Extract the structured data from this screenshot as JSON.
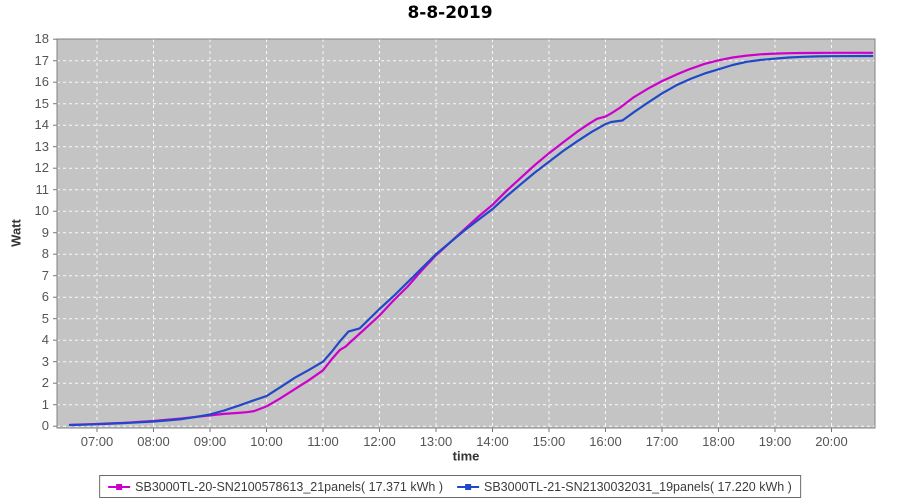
{
  "title": "8-8-2019",
  "axes": {
    "y_label": "Watt",
    "x_label": "time",
    "y_ticks": [
      "0",
      "1",
      "2",
      "3",
      "4",
      "5",
      "6",
      "7",
      "8",
      "9",
      "10",
      "11",
      "12",
      "13",
      "14",
      "15",
      "16",
      "17",
      "18"
    ],
    "x_ticks": [
      "07:00",
      "08:00",
      "09:00",
      "10:00",
      "11:00",
      "12:00",
      "13:00",
      "14:00",
      "15:00",
      "16:00",
      "17:00",
      "18:00",
      "19:00",
      "20:00"
    ]
  },
  "legend": [
    {
      "label": "SB3000TL-20-SN2100578613_21panels( 17.371 kWh )",
      "color": "#CC00CC"
    },
    {
      "label": "SB3000TL-21-SN2130032031_19panels( 17.220 kWh )",
      "color": "#2048C8"
    }
  ],
  "colors": {
    "plot_background": "#C4C4C4",
    "plot_border": "#808080",
    "gridline": "#FFFFFF",
    "tick_text": "#555555",
    "series_magenta": "#CC00CC",
    "series_blue": "#2048C8"
  },
  "chart_data": {
    "type": "line",
    "title": "8-8-2019",
    "xlabel": "time",
    "ylabel": "Watt",
    "x_unit": "hour_of_day",
    "xlim": [
      6.29,
      20.78
    ],
    "ylim": [
      0,
      18
    ],
    "grid": true,
    "grid_style": "white-dashed",
    "legend_position": "bottom",
    "x_tick_hours": [
      7,
      8,
      9,
      10,
      11,
      12,
      13,
      14,
      15,
      16,
      17,
      18,
      19,
      20
    ],
    "series": [
      {
        "name": "SB3000TL-20-SN2100578613_21panels( 17.371 kWh )",
        "color": "#CC00CC",
        "final_kwh": 17.371,
        "points": [
          [
            6.52,
            0.06
          ],
          [
            6.75,
            0.08
          ],
          [
            7.0,
            0.1
          ],
          [
            7.25,
            0.13
          ],
          [
            7.5,
            0.16
          ],
          [
            7.75,
            0.2
          ],
          [
            8.0,
            0.24
          ],
          [
            8.25,
            0.3
          ],
          [
            8.5,
            0.36
          ],
          [
            8.75,
            0.43
          ],
          [
            9.0,
            0.5
          ],
          [
            9.25,
            0.57
          ],
          [
            9.5,
            0.62
          ],
          [
            9.65,
            0.65
          ],
          [
            9.78,
            0.7
          ],
          [
            10.0,
            0.92
          ],
          [
            10.25,
            1.3
          ],
          [
            10.5,
            1.72
          ],
          [
            10.75,
            2.14
          ],
          [
            11.0,
            2.6
          ],
          [
            11.15,
            3.1
          ],
          [
            11.3,
            3.55
          ],
          [
            11.4,
            3.7
          ],
          [
            11.5,
            3.95
          ],
          [
            11.75,
            4.55
          ],
          [
            12.0,
            5.15
          ],
          [
            12.25,
            5.85
          ],
          [
            12.5,
            6.5
          ],
          [
            12.75,
            7.25
          ],
          [
            13.0,
            7.95
          ],
          [
            13.25,
            8.55
          ],
          [
            13.5,
            9.15
          ],
          [
            13.75,
            9.75
          ],
          [
            14.0,
            10.3
          ],
          [
            14.25,
            10.95
          ],
          [
            14.5,
            11.55
          ],
          [
            14.75,
            12.15
          ],
          [
            15.0,
            12.7
          ],
          [
            15.25,
            13.2
          ],
          [
            15.5,
            13.7
          ],
          [
            15.7,
            14.05
          ],
          [
            15.85,
            14.3
          ],
          [
            16.0,
            14.4
          ],
          [
            16.1,
            14.55
          ],
          [
            16.25,
            14.8
          ],
          [
            16.5,
            15.3
          ],
          [
            16.75,
            15.7
          ],
          [
            17.0,
            16.05
          ],
          [
            17.25,
            16.35
          ],
          [
            17.5,
            16.62
          ],
          [
            17.75,
            16.85
          ],
          [
            18.0,
            17.02
          ],
          [
            18.25,
            17.15
          ],
          [
            18.5,
            17.24
          ],
          [
            18.75,
            17.3
          ],
          [
            19.0,
            17.33
          ],
          [
            19.25,
            17.35
          ],
          [
            19.5,
            17.36
          ],
          [
            20.0,
            17.37
          ],
          [
            20.72,
            17.37
          ]
        ]
      },
      {
        "name": "SB3000TL-21-SN2130032031_19panels( 17.220 kWh )",
        "color": "#2048C8",
        "final_kwh": 17.22,
        "points": [
          [
            6.52,
            0.05
          ],
          [
            6.75,
            0.07
          ],
          [
            7.0,
            0.09
          ],
          [
            7.25,
            0.12
          ],
          [
            7.5,
            0.15
          ],
          [
            7.75,
            0.18
          ],
          [
            8.0,
            0.22
          ],
          [
            8.25,
            0.27
          ],
          [
            8.5,
            0.33
          ],
          [
            8.75,
            0.43
          ],
          [
            9.0,
            0.55
          ],
          [
            9.25,
            0.73
          ],
          [
            9.5,
            0.95
          ],
          [
            9.75,
            1.18
          ],
          [
            10.0,
            1.4
          ],
          [
            10.25,
            1.82
          ],
          [
            10.5,
            2.25
          ],
          [
            10.75,
            2.62
          ],
          [
            11.0,
            3.0
          ],
          [
            11.15,
            3.45
          ],
          [
            11.3,
            3.95
          ],
          [
            11.45,
            4.4
          ],
          [
            11.55,
            4.48
          ],
          [
            11.65,
            4.55
          ],
          [
            12.0,
            5.45
          ],
          [
            12.25,
            6.05
          ],
          [
            12.5,
            6.7
          ],
          [
            12.75,
            7.35
          ],
          [
            13.0,
            8.0
          ],
          [
            13.25,
            8.55
          ],
          [
            13.5,
            9.1
          ],
          [
            13.75,
            9.6
          ],
          [
            14.0,
            10.1
          ],
          [
            14.25,
            10.7
          ],
          [
            14.5,
            11.25
          ],
          [
            14.75,
            11.8
          ],
          [
            15.0,
            12.3
          ],
          [
            15.25,
            12.8
          ],
          [
            15.5,
            13.25
          ],
          [
            15.75,
            13.68
          ],
          [
            16.0,
            14.05
          ],
          [
            16.1,
            14.15
          ],
          [
            16.3,
            14.22
          ],
          [
            16.5,
            14.6
          ],
          [
            16.75,
            15.05
          ],
          [
            17.0,
            15.48
          ],
          [
            17.25,
            15.85
          ],
          [
            17.5,
            16.15
          ],
          [
            17.75,
            16.4
          ],
          [
            18.0,
            16.6
          ],
          [
            18.25,
            16.8
          ],
          [
            18.5,
            16.95
          ],
          [
            18.75,
            17.04
          ],
          [
            19.0,
            17.1
          ],
          [
            19.25,
            17.15
          ],
          [
            19.5,
            17.18
          ],
          [
            19.75,
            17.2
          ],
          [
            20.0,
            17.21
          ],
          [
            20.72,
            17.22
          ]
        ]
      }
    ]
  }
}
